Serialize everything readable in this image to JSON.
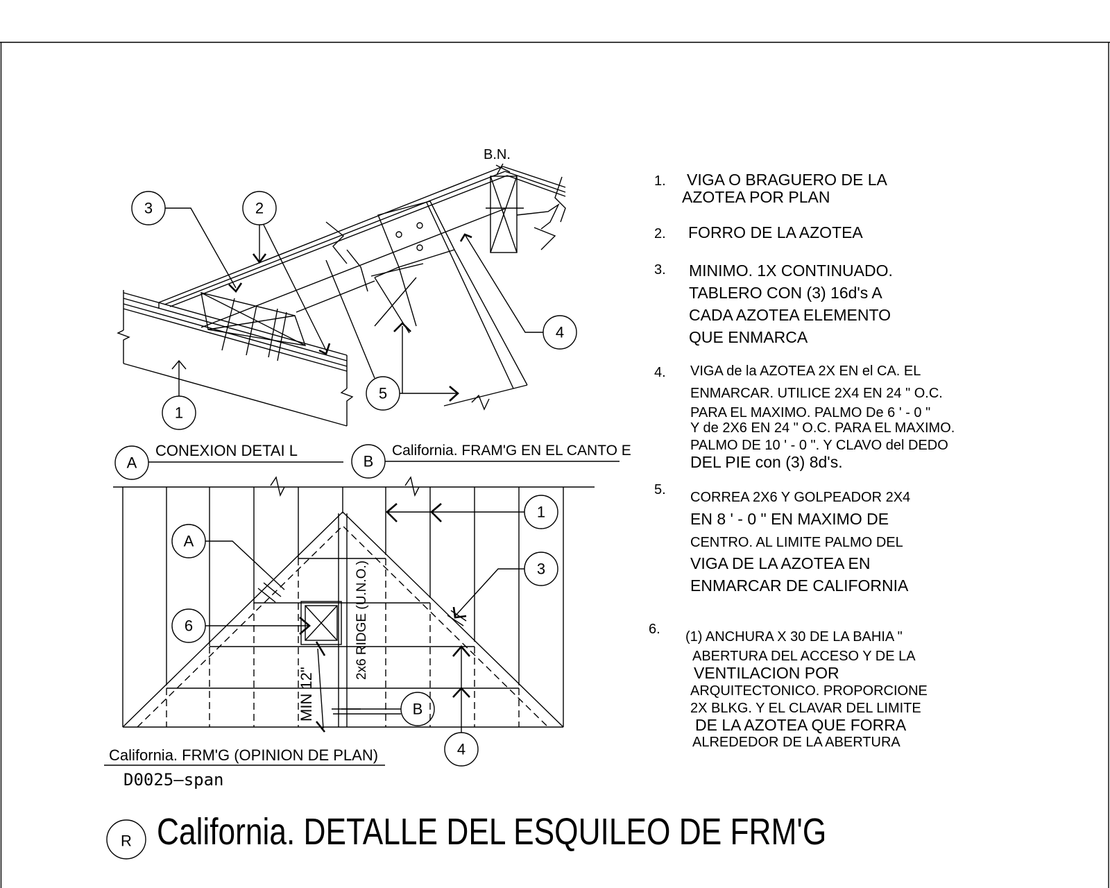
{
  "sheet_number": "D0025–span",
  "title": {
    "symbol": "R",
    "text": "California. DETALLE DEL ESQUILEO DE FRM'G"
  },
  "bn_label": "B.N.",
  "detail_tags": {
    "a": {
      "letter": "A",
      "caption": "CONEXION DETAI L"
    },
    "b": {
      "letter": "B",
      "caption": "California. FRAM'G EN EL CANTO E"
    }
  },
  "plan_caption": "California. FRM'G (OPINION DE PLAN)",
  "plan_labels": {
    "ridge": "2x6 RIDGE (U.N.O.)",
    "min": "MIN 12\""
  },
  "callouts": {
    "c1": "1",
    "c2": "2",
    "c3": "3",
    "c4": "4",
    "c5": "5",
    "c6": "6",
    "pa": "A",
    "pb": "B"
  },
  "notes": [
    {
      "num": "1.",
      "lines": [
        "VIGA O BRAGUERO DE LA",
        "AZOTEA POR PLAN"
      ]
    },
    {
      "num": "2.",
      "lines": [
        "FORRO DE LA AZOTEA"
      ]
    },
    {
      "num": "3.",
      "lines": [
        "MINIMO. 1X CONTINUADO.",
        "TABLERO CON (3) 16d's A",
        "CADA AZOTEA ELEMENTO",
        "QUE ENMARCA"
      ]
    },
    {
      "num": "4.",
      "lines": [
        "VIGA de la AZOTEA 2X EN el CA. EL",
        "ENMARCAR. UTILICE 2X4 EN 24 \" O.C.",
        "PARA EL MAXIMO. PALMO De 6 ' - 0 \"",
        "Y de 2X6 EN 24 \" O.C. PARA EL MAXIMO.",
        "PALMO DE 10 ' - 0 \". Y CLAVO del DEDO",
        "DEL PIE con (3) 8d's."
      ]
    },
    {
      "num": "5.",
      "lines": [
        "CORREA 2X6 Y GOLPEADOR 2X4",
        "EN 8 ' - 0 \" EN MAXIMO DE",
        "CENTRO. AL LIMITE  PALMO DEL",
        "VIGA DE LA AZOTEA EN",
        "ENMARCAR DE CALIFORNIA"
      ]
    },
    {
      "num": "6.",
      "lines": [
        "(1) ANCHURA X 30 DE LA BAHIA \"",
        "ABERTURA DEL ACCESO Y DE LA",
        "VENTILACION POR",
        "ARQUITECTONICO. PROPORCIONE",
        "2X BLKG. Y EL CLAVAR DEL LIMITE",
        "DE LA AZOTEA QUE FORRA",
        "ALREDEDOR DE LA ABERTURA"
      ]
    }
  ]
}
